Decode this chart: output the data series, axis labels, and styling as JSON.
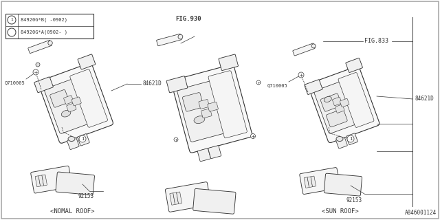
{
  "bg_color": "#ffffff",
  "line_color": "#333333",
  "text_color": "#333333",
  "border_color": "#999999",
  "figsize": [
    6.4,
    3.2
  ],
  "dpi": 100,
  "part_labels": {
    "84621D": "84621D",
    "Q710005": "Q710005",
    "92153": "92153",
    "FIG930": "FIG.930",
    "FIG833": "FIG.833",
    "circle_label": "1",
    "legend_line1": "84920G*B( -0902)",
    "legend_line2": "84920G*A(0902- )",
    "caption_left": "<NOMAL ROOF>",
    "caption_right": "<SUN ROOF>",
    "part_id": "A846001124"
  }
}
